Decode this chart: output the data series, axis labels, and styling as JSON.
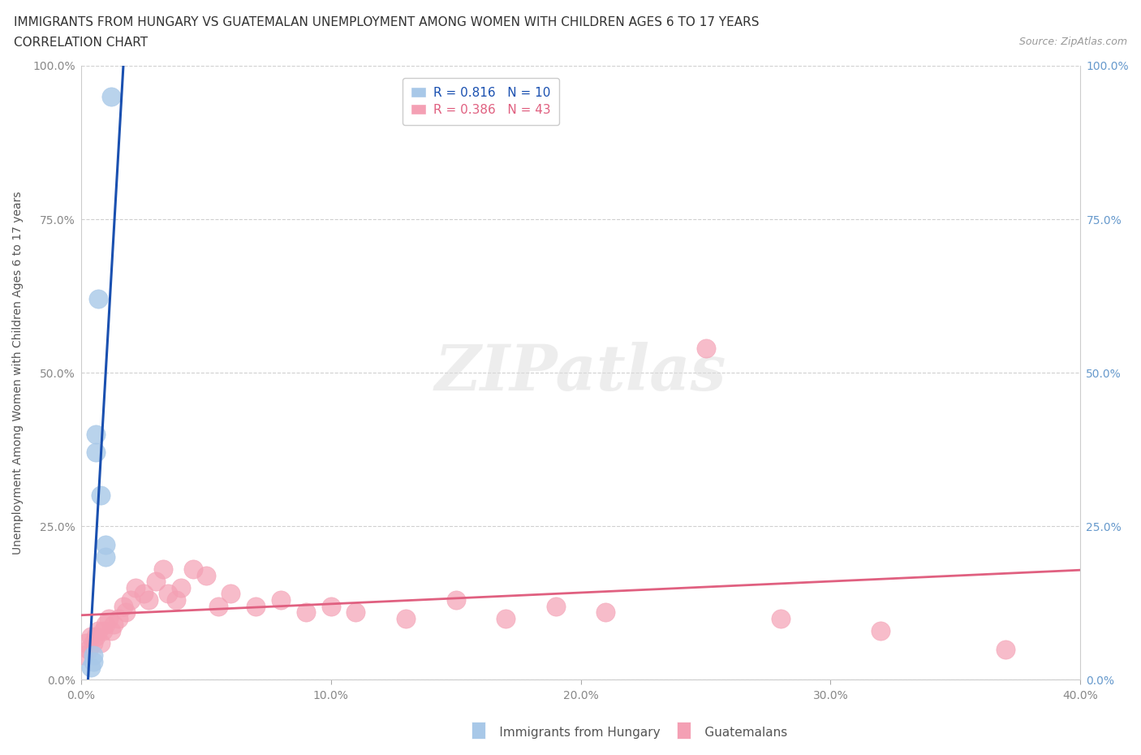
{
  "title_line1": "IMMIGRANTS FROM HUNGARY VS GUATEMALAN UNEMPLOYMENT AMONG WOMEN WITH CHILDREN AGES 6 TO 17 YEARS",
  "title_line2": "CORRELATION CHART",
  "source_text": "Source: ZipAtlas.com",
  "ylabel": "Unemployment Among Women with Children Ages 6 to 17 years",
  "xlim": [
    0.0,
    0.4
  ],
  "ylim": [
    0.0,
    1.0
  ],
  "xtick_labels": [
    "0.0%",
    "10.0%",
    "20.0%",
    "30.0%",
    "40.0%"
  ],
  "xtick_values": [
    0.0,
    0.1,
    0.2,
    0.3,
    0.4
  ],
  "ytick_labels": [
    "0.0%",
    "25.0%",
    "50.0%",
    "75.0%",
    "100.0%"
  ],
  "ytick_values": [
    0.0,
    0.25,
    0.5,
    0.75,
    1.0
  ],
  "ytick_right_labels": [
    "100.0%",
    "75.0%",
    "50.0%",
    "25.0%",
    "0.0%"
  ],
  "hungary_color": "#a8c8e8",
  "guatemala_color": "#f4a0b4",
  "hungary_line_color": "#1a50b0",
  "guatemala_line_color": "#e06080",
  "hungary_R": 0.816,
  "hungary_N": 10,
  "guatemala_R": 0.386,
  "guatemala_N": 43,
  "hungary_scatter_x": [
    0.004,
    0.005,
    0.005,
    0.006,
    0.006,
    0.007,
    0.008,
    0.01,
    0.01,
    0.012
  ],
  "hungary_scatter_y": [
    0.02,
    0.03,
    0.04,
    0.37,
    0.4,
    0.62,
    0.3,
    0.2,
    0.22,
    0.95
  ],
  "guatemala_scatter_x": [
    0.001,
    0.002,
    0.003,
    0.004,
    0.005,
    0.006,
    0.007,
    0.008,
    0.009,
    0.01,
    0.011,
    0.012,
    0.013,
    0.015,
    0.017,
    0.018,
    0.02,
    0.022,
    0.025,
    0.027,
    0.03,
    0.033,
    0.035,
    0.038,
    0.04,
    0.045,
    0.05,
    0.055,
    0.06,
    0.07,
    0.08,
    0.09,
    0.1,
    0.11,
    0.13,
    0.15,
    0.17,
    0.19,
    0.21,
    0.25,
    0.28,
    0.32,
    0.37
  ],
  "guatemala_scatter_y": [
    0.04,
    0.06,
    0.05,
    0.07,
    0.06,
    0.07,
    0.08,
    0.06,
    0.08,
    0.09,
    0.1,
    0.08,
    0.09,
    0.1,
    0.12,
    0.11,
    0.13,
    0.15,
    0.14,
    0.13,
    0.16,
    0.18,
    0.14,
    0.13,
    0.15,
    0.18,
    0.17,
    0.12,
    0.14,
    0.12,
    0.13,
    0.11,
    0.12,
    0.11,
    0.1,
    0.13,
    0.1,
    0.12,
    0.11,
    0.54,
    0.1,
    0.08,
    0.05
  ],
  "background_color": "#ffffff",
  "grid_color": "#d0d0d0",
  "title_fontsize": 11,
  "subtitle_fontsize": 11,
  "axis_label_fontsize": 10,
  "tick_fontsize": 10,
  "legend_fontsize": 11
}
